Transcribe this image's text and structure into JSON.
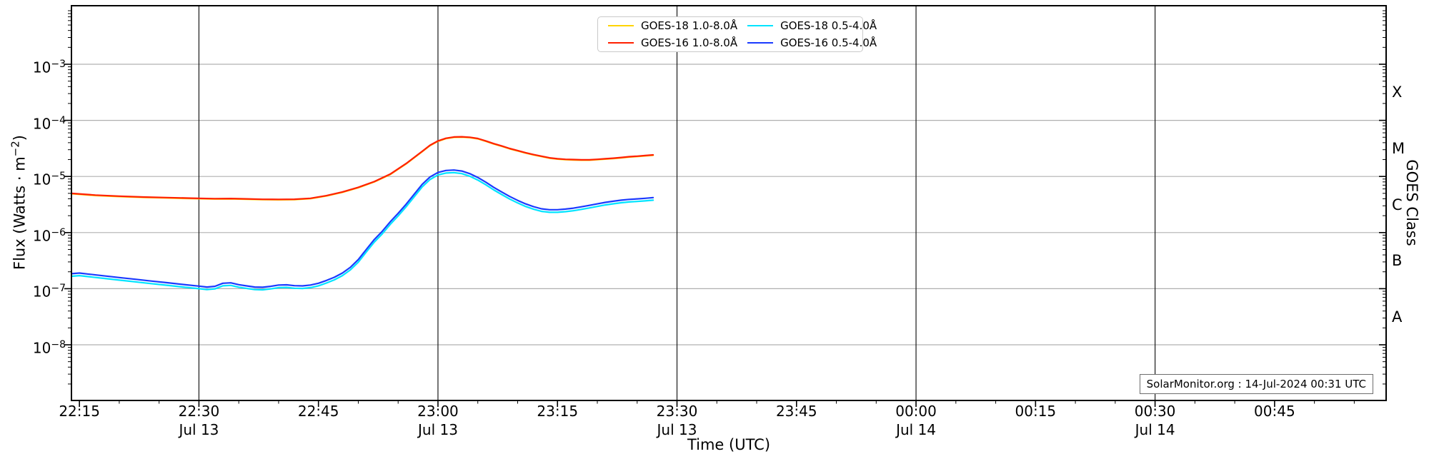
{
  "annotation": "SolarMonitor.org : 14-Jul-2024 00:31 UTC",
  "chart_data": {
    "type": "line",
    "title": "",
    "x_label": "Time (UTC)",
    "y_label_left": {
      "prefix": "Flux (Watts · m",
      "sup": "−2",
      "suffix": ")"
    },
    "y_label_right": "GOES Class",
    "y_scale": "log",
    "ylim_watts_m2": [
      1e-09,
      0.01
    ],
    "y_tick_exponents": [
      -3,
      -4,
      -5,
      -6,
      -7,
      -8
    ],
    "x_range_minutes_of_day": [
      1334,
      1499
    ],
    "grid": {
      "h_color": "#b0b0b0",
      "v_color": "#1a1a1a"
    },
    "x_ticks": [
      {
        "t": 1335,
        "label": "22:15",
        "grid": false
      },
      {
        "t": 1350,
        "label": "22:30",
        "date": "Jul 13",
        "grid": true
      },
      {
        "t": 1365,
        "label": "22:45",
        "grid": false
      },
      {
        "t": 1380,
        "label": "23:00",
        "date": "Jul 13",
        "grid": true
      },
      {
        "t": 1395,
        "label": "23:15",
        "grid": false
      },
      {
        "t": 1410,
        "label": "23:30",
        "date": "Jul 13",
        "grid": true
      },
      {
        "t": 1425,
        "label": "23:45",
        "grid": false
      },
      {
        "t": 1440,
        "label": "00:00",
        "date": "Jul 14",
        "grid": true
      },
      {
        "t": 1455,
        "label": "00:15",
        "grid": false
      },
      {
        "t": 1470,
        "label": "00:30",
        "date": "Jul 14",
        "grid": true
      },
      {
        "t": 1485,
        "label": "00:45",
        "grid": false
      }
    ],
    "goes_class_bands": [
      {
        "label": "X",
        "log_center": -3.5
      },
      {
        "label": "M",
        "log_center": -4.5
      },
      {
        "label": "C",
        "log_center": -5.5
      },
      {
        "label": "B",
        "log_center": -6.5
      },
      {
        "label": "A",
        "log_center": -7.5
      }
    ],
    "legend": {
      "entries": [
        {
          "label": "GOES-18 1.0-8.0Å",
          "color": "#ffd400"
        },
        {
          "label": "GOES-16 1.0-8.0Å",
          "color": "#ff2000"
        },
        {
          "label": "GOES-18 0.5-4.0Å",
          "color": "#00e4ff"
        },
        {
          "label": "GOES-16 0.5-4.0Å",
          "color": "#1a3aff"
        }
      ]
    },
    "series": [
      {
        "name": "GOES-18 1.0-8.0Å",
        "color": "#ffd400",
        "coincides_with_series": 1,
        "visual_factor": 0.985
      },
      {
        "name": "GOES-16 1.0-8.0Å",
        "color": "#ff2000",
        "points": {
          "t": [
            1334,
            1337,
            1340,
            1343,
            1346,
            1349,
            1352,
            1354,
            1356,
            1358,
            1360,
            1362,
            1364,
            1366,
            1368,
            1370,
            1372,
            1374,
            1376,
            1378,
            1379,
            1380,
            1381,
            1382,
            1383,
            1384,
            1385,
            1386,
            1387,
            1388,
            1389,
            1390,
            1391,
            1392,
            1393,
            1394,
            1395,
            1396,
            1397,
            1398,
            1399,
            1400,
            1401,
            1402,
            1403,
            1404,
            1405,
            1406,
            1407
          ],
          "v": [
            5e-06,
            4.65e-06,
            4.45e-06,
            4.3e-06,
            4.2e-06,
            4.1e-06,
            4.02e-06,
            4.05e-06,
            3.98e-06,
            3.92e-06,
            3.9e-06,
            3.93e-06,
            4.08e-06,
            4.55e-06,
            5.3e-06,
            6.4e-06,
            8.1e-06,
            1.1e-05,
            1.7e-05,
            2.8e-05,
            3.6e-05,
            4.3e-05,
            4.8e-05,
            5.05e-05,
            5.1e-05,
            5e-05,
            4.75e-05,
            4.3e-05,
            3.85e-05,
            3.5e-05,
            3.15e-05,
            2.9e-05,
            2.65e-05,
            2.45e-05,
            2.3e-05,
            2.15e-05,
            2.07e-05,
            2.02e-05,
            2e-05,
            1.98e-05,
            1.98e-05,
            2.02e-05,
            2.07e-05,
            2.12e-05,
            2.18e-05,
            2.25e-05,
            2.3e-05,
            2.36e-05,
            2.42e-05
          ]
        }
      },
      {
        "name": "GOES-18 0.5-4.0Å",
        "color": "#00e4ff",
        "coincides_with_series": 3,
        "visual_factor": 0.9
      },
      {
        "name": "GOES-16 0.5-4.0Å",
        "color": "#1a3aff",
        "points": {
          "t": [
            1334,
            1335,
            1336,
            1338,
            1340,
            1342,
            1344,
            1346,
            1348,
            1350,
            1351,
            1352,
            1353,
            1354,
            1355,
            1356,
            1357,
            1358,
            1359,
            1360,
            1361,
            1362,
            1363,
            1364,
            1365,
            1366,
            1367,
            1368,
            1369,
            1370,
            1371,
            1372,
            1373,
            1374,
            1375,
            1376,
            1377,
            1378,
            1379,
            1380,
            1381,
            1382,
            1383,
            1384,
            1385,
            1386,
            1387,
            1388,
            1389,
            1390,
            1391,
            1392,
            1393,
            1394,
            1395,
            1396,
            1397,
            1398,
            1399,
            1400,
            1401,
            1402,
            1403,
            1404,
            1405,
            1406,
            1407
          ],
          "v": [
            1.85e-07,
            1.9e-07,
            1.83e-07,
            1.7e-07,
            1.58e-07,
            1.47e-07,
            1.37e-07,
            1.28e-07,
            1.19e-07,
            1.11e-07,
            1.07e-07,
            1.1e-07,
            1.25e-07,
            1.27e-07,
            1.18e-07,
            1.12e-07,
            1.07e-07,
            1.06e-07,
            1.1e-07,
            1.16e-07,
            1.17e-07,
            1.13e-07,
            1.12e-07,
            1.16e-07,
            1.25e-07,
            1.4e-07,
            1.6e-07,
            1.9e-07,
            2.4e-07,
            3.3e-07,
            5e-07,
            7.5e-07,
            1.05e-06,
            1.55e-06,
            2.2e-06,
            3.2e-06,
            4.8e-06,
            7.2e-06,
            9.8e-06,
            1.18e-05,
            1.28e-05,
            1.3e-05,
            1.25e-05,
            1.12e-05,
            9.6e-06,
            7.9e-06,
            6.4e-06,
            5.3e-06,
            4.4e-06,
            3.75e-06,
            3.25e-06,
            2.9e-06,
            2.65e-06,
            2.55e-06,
            2.55e-06,
            2.62e-06,
            2.72e-06,
            2.88e-06,
            3.05e-06,
            3.25e-06,
            3.45e-06,
            3.62e-06,
            3.78e-06,
            3.9e-06,
            3.98e-06,
            4.08e-06,
            4.2e-06
          ]
        }
      }
    ]
  }
}
